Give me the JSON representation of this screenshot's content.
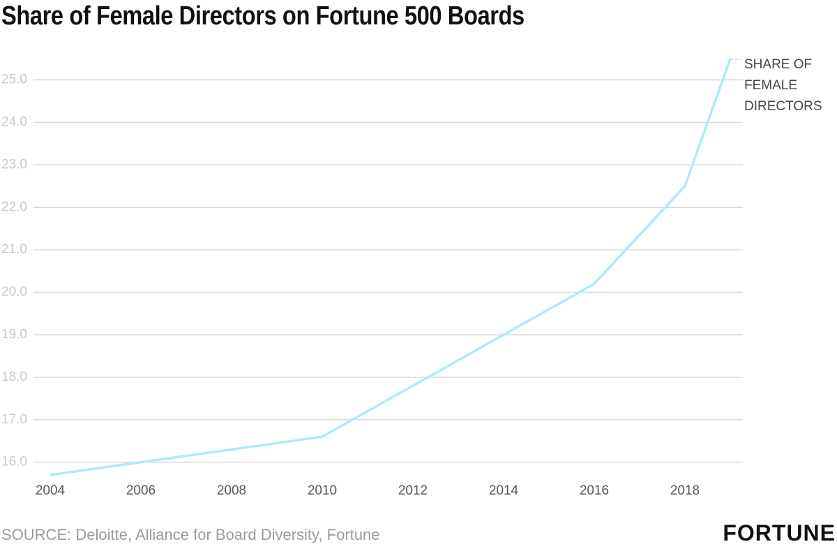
{
  "chart_data": {
    "type": "line",
    "title": "Share of Female Directors on Fortune 500 Boards",
    "source": "SOURCE: Deloitte, Alliance for Board Diversity, Fortune",
    "brand": "FORTUNE",
    "x": [
      2004,
      2010,
      2016,
      2018,
      2019
    ],
    "series": [
      {
        "name": "SHARE OF FEMALE DIRECTORS",
        "color": "#aeeaf8",
        "values": [
          15.7,
          16.6,
          20.2,
          22.5,
          25.5
        ]
      }
    ],
    "xlim": [
      2004,
      2019
    ],
    "xticks": [
      2004,
      2006,
      2008,
      2010,
      2012,
      2014,
      2016,
      2018
    ],
    "ylim": [
      15.6,
      25.6
    ],
    "yticks": [
      {
        "value": 16,
        "label": "16.0"
      },
      {
        "value": 17,
        "label": "17.0"
      },
      {
        "value": 18,
        "label": "18.0"
      },
      {
        "value": 19,
        "label": "19.0"
      },
      {
        "value": 20,
        "label": "20.0"
      },
      {
        "value": 21,
        "label": "21.0"
      },
      {
        "value": 22,
        "label": "22.0"
      },
      {
        "value": 23,
        "label": "23.0"
      },
      {
        "value": 24,
        "label": "24.0"
      },
      {
        "value": 25,
        "label": "25.0"
      }
    ],
    "grid": true
  }
}
